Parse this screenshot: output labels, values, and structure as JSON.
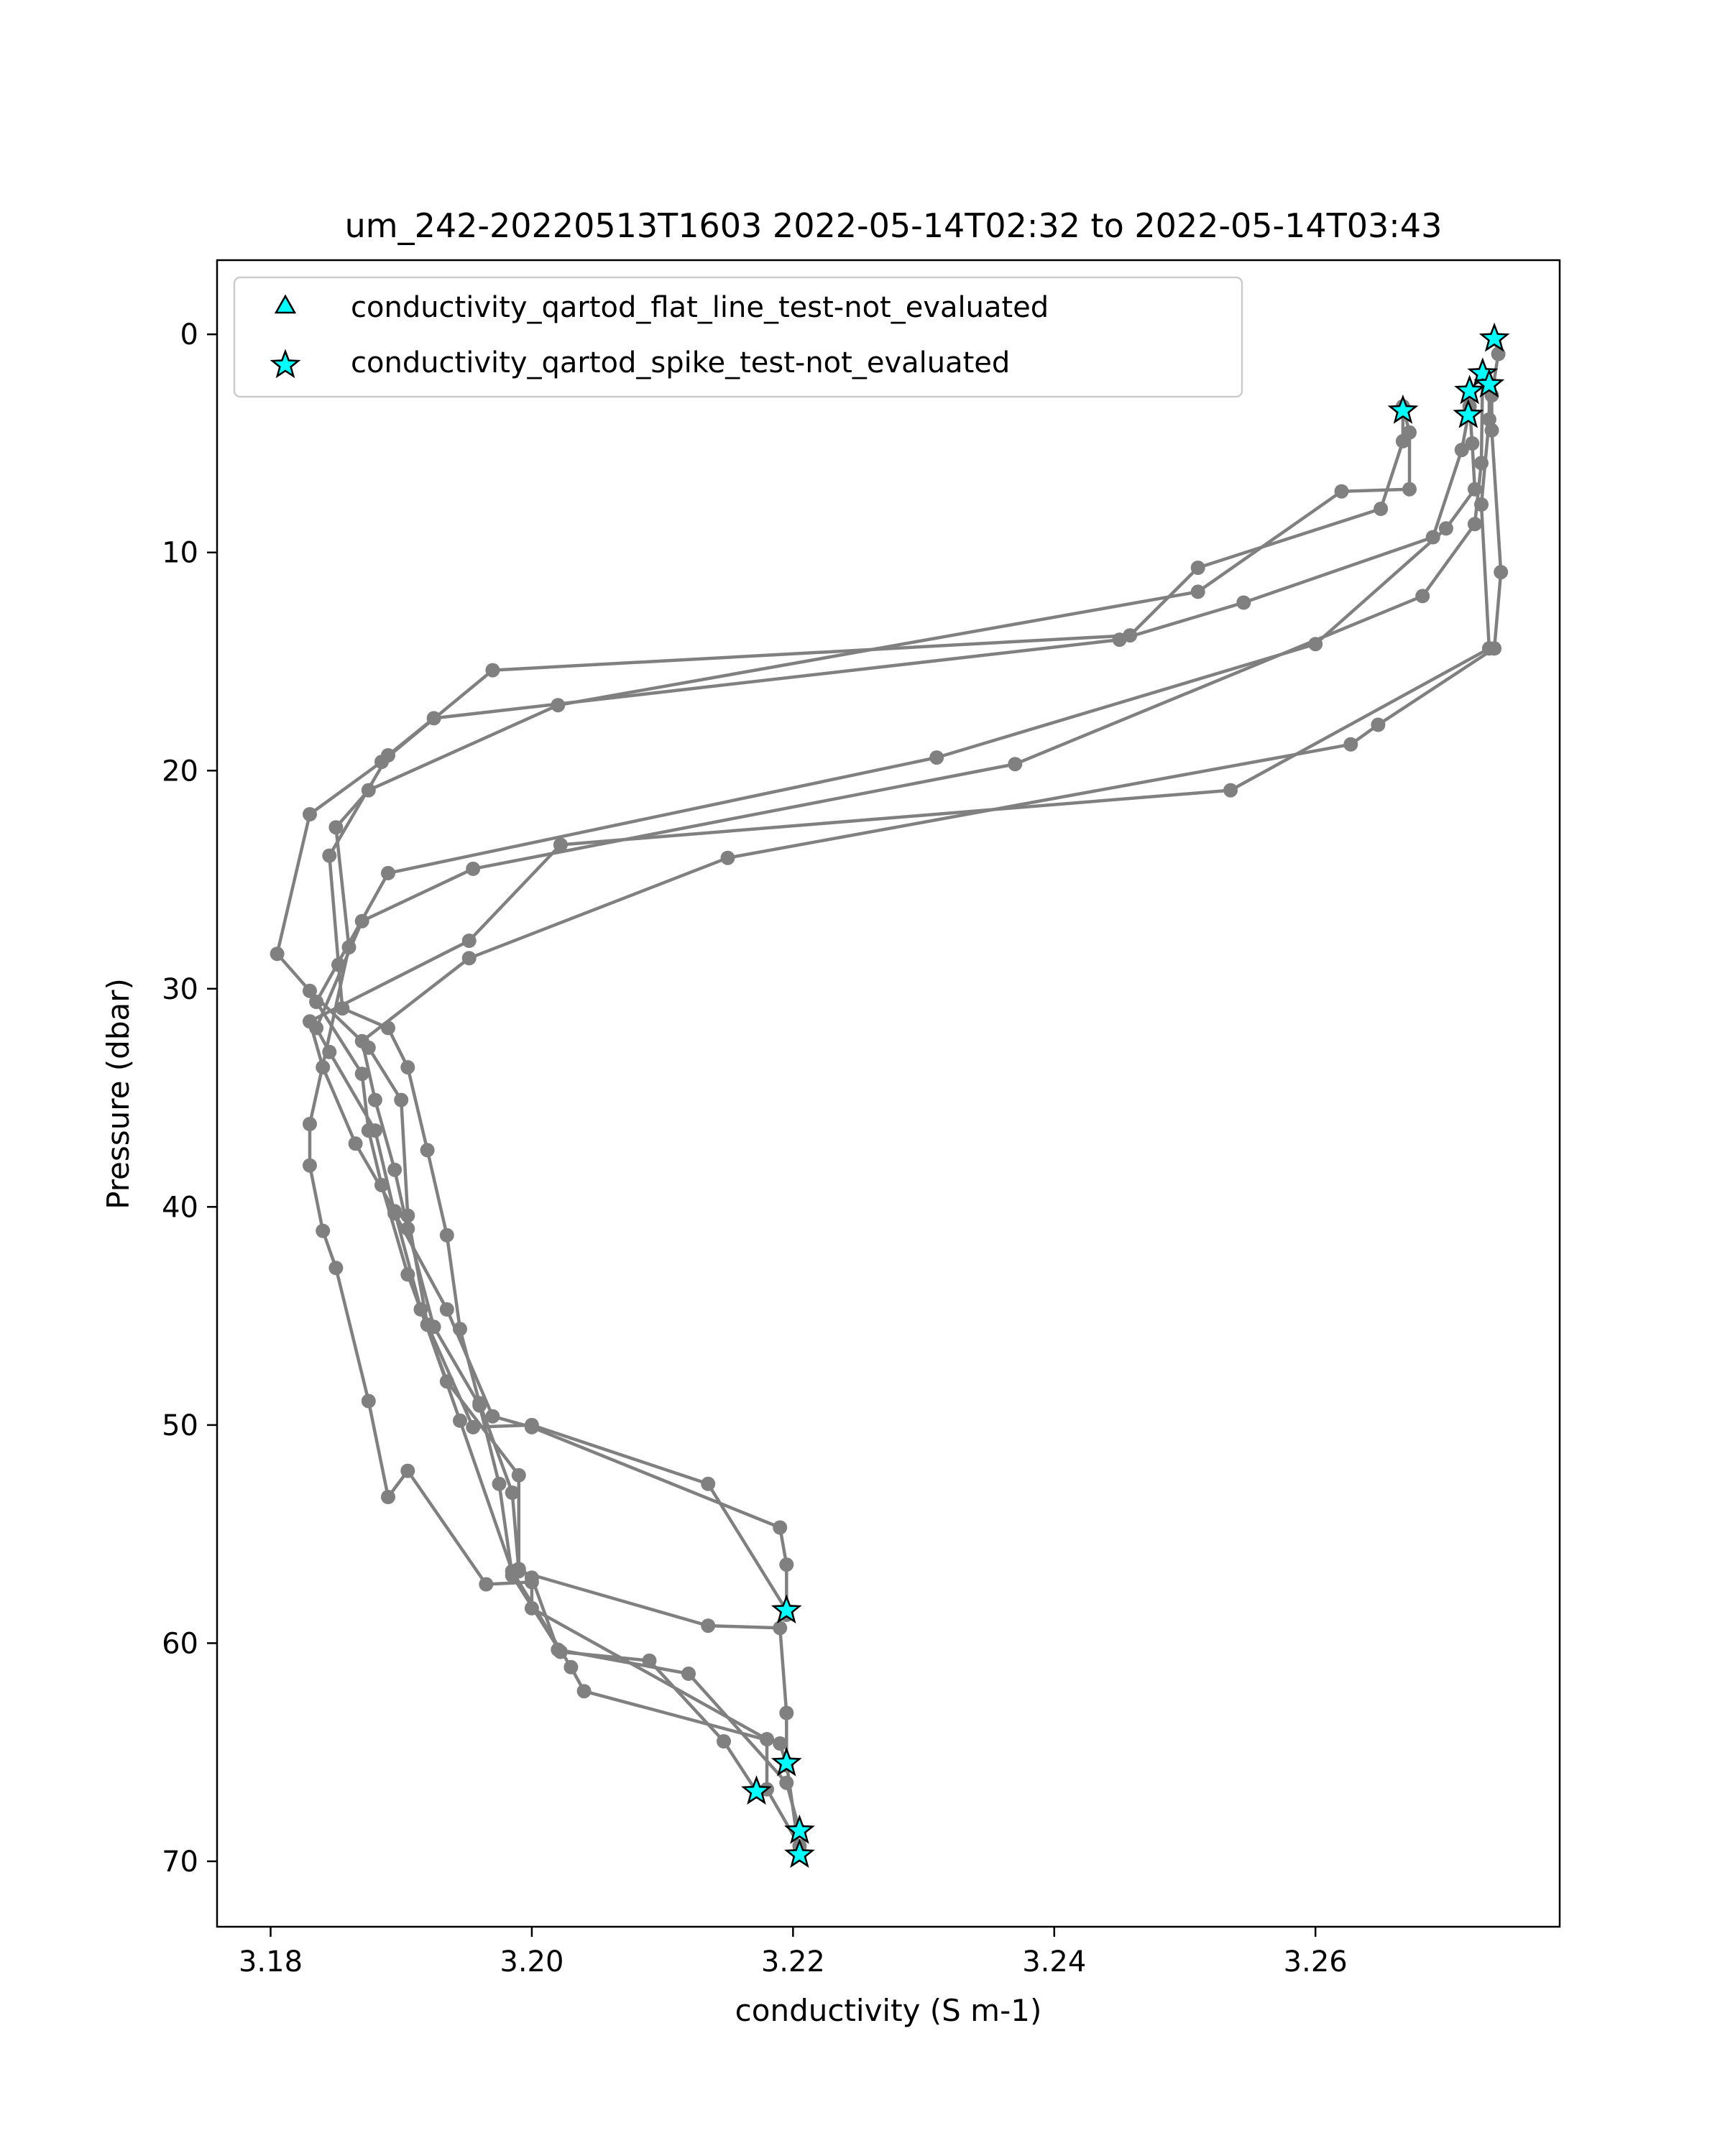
{
  "chart_data": {
    "type": "scatter",
    "title": "um_242-20220513T1603 2022-05-14T02:32 to 2022-05-14T03:43",
    "xlabel": "conductivity (S m-1)",
    "ylabel": "Pressure (dbar)",
    "xlim": [
      3.1759,
      3.2787
    ],
    "ylim": [
      73.0,
      -3.4
    ],
    "y_inverted": true,
    "grid": false,
    "x_ticks": [
      {
        "value": 3.18,
        "label": "3.18"
      },
      {
        "value": 3.2,
        "label": "3.20"
      },
      {
        "value": 3.22,
        "label": "3.22"
      },
      {
        "value": 3.24,
        "label": "3.24"
      },
      {
        "value": 3.26,
        "label": "3.26"
      }
    ],
    "y_ticks": [
      {
        "value": 0,
        "label": "0"
      },
      {
        "value": 10,
        "label": "10"
      },
      {
        "value": 20,
        "label": "20"
      },
      {
        "value": 30,
        "label": "30"
      },
      {
        "value": 40,
        "label": "40"
      },
      {
        "value": 50,
        "label": "50"
      },
      {
        "value": 60,
        "label": "60"
      },
      {
        "value": 70,
        "label": "70"
      }
    ],
    "legend_position": "upper-left",
    "legend": [
      {
        "label": "conductivity_qartod_flat_line_test-not_evaluated",
        "marker": "triangle",
        "color": "#00ffff"
      },
      {
        "label": "conductivity_qartod_spike_test-not_evaluated",
        "marker": "star",
        "color": "#00ffff"
      }
    ],
    "profile_color": "#808080",
    "series": [
      {
        "values": [
          {
            "x": 3.2737,
            "y": 0.2
          },
          {
            "x": 3.274,
            "y": 0.9
          },
          {
            "x": 3.2735,
            "y": 2.8
          },
          {
            "x": 3.2735,
            "y": 4.4
          },
          {
            "x": 3.2742,
            "y": 10.9
          },
          {
            "x": 3.2737,
            "y": 14.4
          },
          {
            "x": 3.2648,
            "y": 17.9
          },
          {
            "x": 3.2627,
            "y": 18.8
          },
          {
            "x": 3.215,
            "y": 24.0
          },
          {
            "x": 3.1952,
            "y": 28.6
          },
          {
            "x": 3.187,
            "y": 32.4
          },
          {
            "x": 3.188,
            "y": 35.1
          },
          {
            "x": 3.1895,
            "y": 38.3
          },
          {
            "x": 3.1905,
            "y": 41.0
          },
          {
            "x": 3.1925,
            "y": 45.5
          },
          {
            "x": 3.196,
            "y": 49.1
          },
          {
            "x": 3.1975,
            "y": 52.7
          },
          {
            "x": 3.1985,
            "y": 56.9
          },
          {
            "x": 3.2022,
            "y": 60.4
          },
          {
            "x": 3.209,
            "y": 60.8
          },
          {
            "x": 3.2147,
            "y": 64.5
          },
          {
            "x": 3.2172,
            "y": 66.8
          }
        ]
      },
      {
        "values": [
          {
            "x": 3.2733,
            "y": 2.3
          },
          {
            "x": 3.2733,
            "y": 3.9
          },
          {
            "x": 3.2727,
            "y": 7.8
          },
          {
            "x": 3.2733,
            "y": 14.4
          },
          {
            "x": 3.2535,
            "y": 20.9
          },
          {
            "x": 3.2022,
            "y": 23.4
          },
          {
            "x": 3.1952,
            "y": 27.8
          },
          {
            "x": 3.183,
            "y": 31.5
          },
          {
            "x": 3.184,
            "y": 33.6
          },
          {
            "x": 3.1865,
            "y": 37.1
          },
          {
            "x": 3.1895,
            "y": 40.2
          },
          {
            "x": 3.1915,
            "y": 44.7
          },
          {
            "x": 3.1945,
            "y": 49.8
          },
          {
            "x": 3.1985,
            "y": 56.7
          },
          {
            "x": 3.203,
            "y": 61.1
          },
          {
            "x": 3.204,
            "y": 62.2
          },
          {
            "x": 3.219,
            "y": 64.6
          },
          {
            "x": 3.2195,
            "y": 65.6
          }
        ]
      },
      {
        "values": [
          {
            "x": 3.2728,
            "y": 1.8
          },
          {
            "x": 3.2727,
            "y": 5.9
          },
          {
            "x": 3.2722,
            "y": 8.7
          },
          {
            "x": 3.2682,
            "y": 12.0
          },
          {
            "x": 3.237,
            "y": 19.7
          },
          {
            "x": 3.1955,
            "y": 24.5
          },
          {
            "x": 3.187,
            "y": 26.9
          },
          {
            "x": 3.1835,
            "y": 31.8
          },
          {
            "x": 3.1845,
            "y": 32.9
          },
          {
            "x": 3.188,
            "y": 36.5
          },
          {
            "x": 3.1895,
            "y": 40.3
          },
          {
            "x": 3.1935,
            "y": 44.7
          },
          {
            "x": 3.197,
            "y": 49.6
          },
          {
            "x": 3.2,
            "y": 50.1
          },
          {
            "x": 3.219,
            "y": 54.7
          },
          {
            "x": 3.2195,
            "y": 56.4
          },
          {
            "x": 3.2195,
            "y": 58.7
          }
        ]
      },
      {
        "values": [
          {
            "x": 3.2718,
            "y": 2.6
          },
          {
            "x": 3.2718,
            "y": 3.3
          },
          {
            "x": 3.272,
            "y": 5.0
          },
          {
            "x": 3.2722,
            "y": 7.1
          },
          {
            "x": 3.27,
            "y": 8.9
          },
          {
            "x": 3.26,
            "y": 14.2
          },
          {
            "x": 3.231,
            "y": 19.4
          },
          {
            "x": 3.189,
            "y": 24.7
          },
          {
            "x": 3.1835,
            "y": 30.6
          },
          {
            "x": 3.187,
            "y": 33.9
          },
          {
            "x": 3.1875,
            "y": 36.5
          },
          {
            "x": 3.1885,
            "y": 39.0
          },
          {
            "x": 3.1905,
            "y": 43.1
          },
          {
            "x": 3.1935,
            "y": 48.0
          },
          {
            "x": 3.199,
            "y": 52.3
          },
          {
            "x": 3.199,
            "y": 56.6
          },
          {
            "x": 3.2,
            "y": 57.0
          },
          {
            "x": 3.202,
            "y": 60.3
          },
          {
            "x": 3.212,
            "y": 61.4
          },
          {
            "x": 3.2195,
            "y": 66.4
          },
          {
            "x": 3.2205,
            "y": 68.6
          }
        ]
      },
      {
        "values": [
          {
            "x": 3.2717,
            "y": 3.7
          },
          {
            "x": 3.2712,
            "y": 5.3
          },
          {
            "x": 3.269,
            "y": 9.3
          },
          {
            "x": 3.2545,
            "y": 12.3
          },
          {
            "x": 3.245,
            "y": 14.0
          },
          {
            "x": 3.1925,
            "y": 17.6
          },
          {
            "x": 3.189,
            "y": 19.3
          },
          {
            "x": 3.1845,
            "y": 23.9
          },
          {
            "x": 3.1852,
            "y": 28.9
          },
          {
            "x": 3.1855,
            "y": 30.9
          },
          {
            "x": 3.189,
            "y": 31.8
          },
          {
            "x": 3.1905,
            "y": 33.6
          },
          {
            "x": 3.192,
            "y": 37.4
          },
          {
            "x": 3.1935,
            "y": 41.3
          },
          {
            "x": 3.1945,
            "y": 45.6
          },
          {
            "x": 3.196,
            "y": 49.0
          },
          {
            "x": 3.1985,
            "y": 53.1
          },
          {
            "x": 3.199,
            "y": 56.7
          },
          {
            "x": 3.2135,
            "y": 59.2
          },
          {
            "x": 3.219,
            "y": 59.3
          },
          {
            "x": 3.2195,
            "y": 63.2
          },
          {
            "x": 3.2195,
            "y": 65.5
          },
          {
            "x": 3.2205,
            "y": 69.7
          }
        ]
      },
      {
        "values": [
          {
            "x": 3.2667,
            "y": 3.5
          },
          {
            "x": 3.2667,
            "y": 4.9
          },
          {
            "x": 3.265,
            "y": 8.0
          },
          {
            "x": 3.251,
            "y": 10.7
          },
          {
            "x": 3.2458,
            "y": 13.8
          },
          {
            "x": 3.197,
            "y": 15.4
          },
          {
            "x": 3.1885,
            "y": 19.6
          },
          {
            "x": 3.183,
            "y": 22.0
          },
          {
            "x": 3.1805,
            "y": 28.4
          },
          {
            "x": 3.183,
            "y": 30.1
          },
          {
            "x": 3.1875,
            "y": 32.7
          },
          {
            "x": 3.19,
            "y": 35.1
          },
          {
            "x": 3.1905,
            "y": 40.4
          },
          {
            "x": 3.192,
            "y": 45.4
          },
          {
            "x": 3.1955,
            "y": 50.1
          },
          {
            "x": 3.2,
            "y": 50.0
          },
          {
            "x": 3.2135,
            "y": 52.7
          },
          {
            "x": 3.2195,
            "y": 58.5
          }
        ]
      },
      {
        "values": [
          {
            "x": 3.2667,
            "y": 3.3
          },
          {
            "x": 3.2672,
            "y": 4.5
          },
          {
            "x": 3.2672,
            "y": 7.1
          },
          {
            "x": 3.262,
            "y": 7.2
          },
          {
            "x": 3.251,
            "y": 11.8
          },
          {
            "x": 3.202,
            "y": 17.0
          },
          {
            "x": 3.1875,
            "y": 20.9
          },
          {
            "x": 3.185,
            "y": 22.6
          },
          {
            "x": 3.186,
            "y": 28.1
          },
          {
            "x": 3.183,
            "y": 36.2
          },
          {
            "x": 3.183,
            "y": 38.1
          },
          {
            "x": 3.184,
            "y": 41.1
          },
          {
            "x": 3.185,
            "y": 42.8
          },
          {
            "x": 3.1875,
            "y": 48.9
          },
          {
            "x": 3.189,
            "y": 53.3
          },
          {
            "x": 3.1905,
            "y": 52.1
          },
          {
            "x": 3.1965,
            "y": 57.3
          },
          {
            "x": 3.2,
            "y": 57.2
          },
          {
            "x": 3.2,
            "y": 58.4
          },
          {
            "x": 3.218,
            "y": 64.4
          },
          {
            "x": 3.218,
            "y": 66.7
          },
          {
            "x": 3.2205,
            "y": 69.3
          }
        ]
      }
    ],
    "flagged_points": [
      {
        "x": 3.2737,
        "y": 0.2,
        "test": "spike"
      },
      {
        "x": 3.2728,
        "y": 1.8,
        "test": "spike"
      },
      {
        "x": 3.2733,
        "y": 2.3,
        "test": "spike"
      },
      {
        "x": 3.2718,
        "y": 2.6,
        "test": "spike"
      },
      {
        "x": 3.2667,
        "y": 3.5,
        "test": "spike"
      },
      {
        "x": 3.2717,
        "y": 3.7,
        "test": "spike"
      },
      {
        "x": 3.2195,
        "y": 58.5,
        "test": "spike"
      },
      {
        "x": 3.2195,
        "y": 65.5,
        "test": "spike"
      },
      {
        "x": 3.2172,
        "y": 66.8,
        "test": "spike"
      },
      {
        "x": 3.2205,
        "y": 68.6,
        "test": "spike"
      },
      {
        "x": 3.2205,
        "y": 69.7,
        "test": "spike"
      }
    ]
  }
}
